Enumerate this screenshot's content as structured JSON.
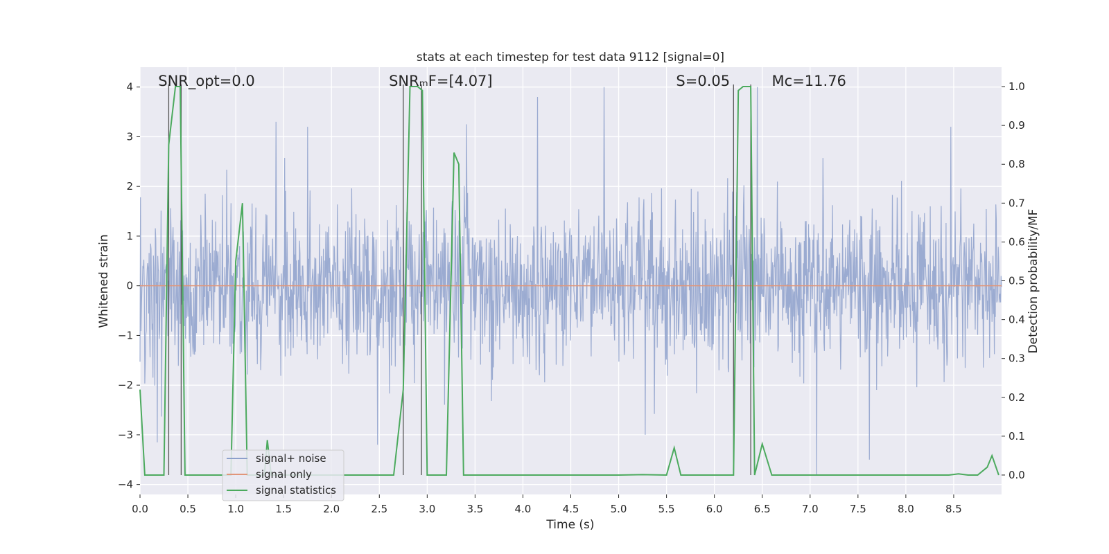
{
  "chart_data": {
    "type": "line",
    "title": "stats at each timestep for test data 9112 [signal=0]",
    "xlabel": "Time (s)",
    "ylabel": "Whitened strain",
    "y2label": "Detection probability/MF",
    "xlim": [
      0.0,
      9.0
    ],
    "ylim": [
      -4.2,
      4.4
    ],
    "y2lim": [
      -0.05,
      1.05
    ],
    "xticks": [
      0.0,
      0.5,
      1.0,
      1.5,
      2.0,
      2.5,
      3.0,
      3.5,
      4.0,
      4.5,
      5.0,
      5.5,
      6.0,
      6.5,
      7.0,
      7.5,
      8.0,
      8.5
    ],
    "xtick_labels": [
      "0.0",
      "0.5",
      "1.0",
      "1.5",
      "2.0",
      "2.5",
      "3.0",
      "3.5",
      "4.0",
      "4.5",
      "5.0",
      "5.5",
      "6.0",
      "6.5",
      "7.0",
      "7.5",
      "8.0",
      "8.5"
    ],
    "yticks": [
      4,
      3,
      2,
      1,
      0,
      -1,
      -2,
      -3,
      -4
    ],
    "ytick_labels": [
      "4",
      "3",
      "2",
      "1",
      "0",
      "−1",
      "−2",
      "−3",
      "−4"
    ],
    "y2ticks": [
      1.0,
      0.9,
      0.8,
      0.7,
      0.6,
      0.5,
      0.4,
      0.3,
      0.2,
      0.1,
      0.0
    ],
    "y2tick_labels": [
      "1.0",
      "0.9",
      "0.8",
      "0.7",
      "0.6",
      "0.5",
      "0.4",
      "0.3",
      "0.2",
      "0.1",
      "0.0"
    ],
    "noise": {
      "name": "signal+ noise",
      "color": "#8da0cb",
      "seed": 9112,
      "duration": 9.0,
      "samples": 1800,
      "spikes": [
        {
          "t": 1.42,
          "y": 3.3
        },
        {
          "t": 1.75,
          "y": 3.2
        },
        {
          "t": 3.41,
          "y": 3.25
        },
        {
          "t": 4.15,
          "y": 3.8
        },
        {
          "t": 4.85,
          "y": 4.0
        },
        {
          "t": 5.28,
          "y": -3.0
        },
        {
          "t": 6.45,
          "y": 4.0
        },
        {
          "t": 7.07,
          "y": -3.8
        },
        {
          "t": 7.62,
          "y": -3.5
        },
        {
          "t": 8.47,
          "y": 3.2
        },
        {
          "t": 0.18,
          "y": -3.15
        },
        {
          "t": 2.48,
          "y": -3.2
        }
      ]
    },
    "signal_only": {
      "name": "signal only",
      "color": "#e1967a",
      "value": 0.0
    },
    "statistics": {
      "name": "signal statistics",
      "color": "#4caa5e",
      "x": [
        0.0,
        0.05,
        0.1,
        0.2,
        0.25,
        0.3,
        0.37,
        0.42,
        0.47,
        0.5,
        0.55,
        0.6,
        0.8,
        0.95,
        1.0,
        1.07,
        1.12,
        1.17,
        1.25,
        1.3,
        1.33,
        1.37,
        1.45,
        1.55,
        2.0,
        2.5,
        2.65,
        2.75,
        2.82,
        2.9,
        2.95,
        3.0,
        3.1,
        3.2,
        3.28,
        3.33,
        3.38,
        3.43,
        3.5,
        3.6,
        4.0,
        4.5,
        5.0,
        5.25,
        5.5,
        5.58,
        5.65,
        5.75,
        6.0,
        6.2,
        6.25,
        6.3,
        6.38,
        6.42,
        6.5,
        6.6,
        7.0,
        7.5,
        8.0,
        8.45,
        8.55,
        8.65,
        8.75,
        8.85,
        8.9,
        8.97
      ],
      "y": [
        0.22,
        0.0,
        0.0,
        0.0,
        0.0,
        0.85,
        1.0,
        1.0,
        0.0,
        0.0,
        0.0,
        0.0,
        0.0,
        0.0,
        0.55,
        0.7,
        0.0,
        0.0,
        0.0,
        0.0,
        0.09,
        0.0,
        0.0,
        0.0,
        0.0,
        0.0,
        0.0,
        0.22,
        1.0,
        1.0,
        0.99,
        0.0,
        0.0,
        0.0,
        0.83,
        0.8,
        0.0,
        0.0,
        0.0,
        0.0,
        0.0,
        0.0,
        0.0,
        0.001,
        0.0,
        0.07,
        0.0,
        0.0,
        0.0,
        0.0,
        0.99,
        1.0,
        1.0,
        0.0,
        0.08,
        0.0,
        0.0,
        0.0,
        0.0,
        0.0,
        0.003,
        0.0,
        0.0,
        0.02,
        0.05,
        0.0
      ]
    },
    "vlines": [
      0.3,
      0.43,
      2.75,
      2.94,
      6.2,
      6.38
    ],
    "annotations": [
      {
        "id": "snr-opt",
        "t": 0.19,
        "text": "SNR_opt=0.0"
      },
      {
        "id": "snr-mf",
        "t": 2.6,
        "text": "SNRₘF=[4.07]"
      },
      {
        "id": "s-value",
        "t": 5.6,
        "text": "S=0.05"
      },
      {
        "id": "mc-value",
        "t": 6.6,
        "text": "Mᴄ=11.76"
      }
    ],
    "legend_position": "lower-left",
    "grid": true
  }
}
